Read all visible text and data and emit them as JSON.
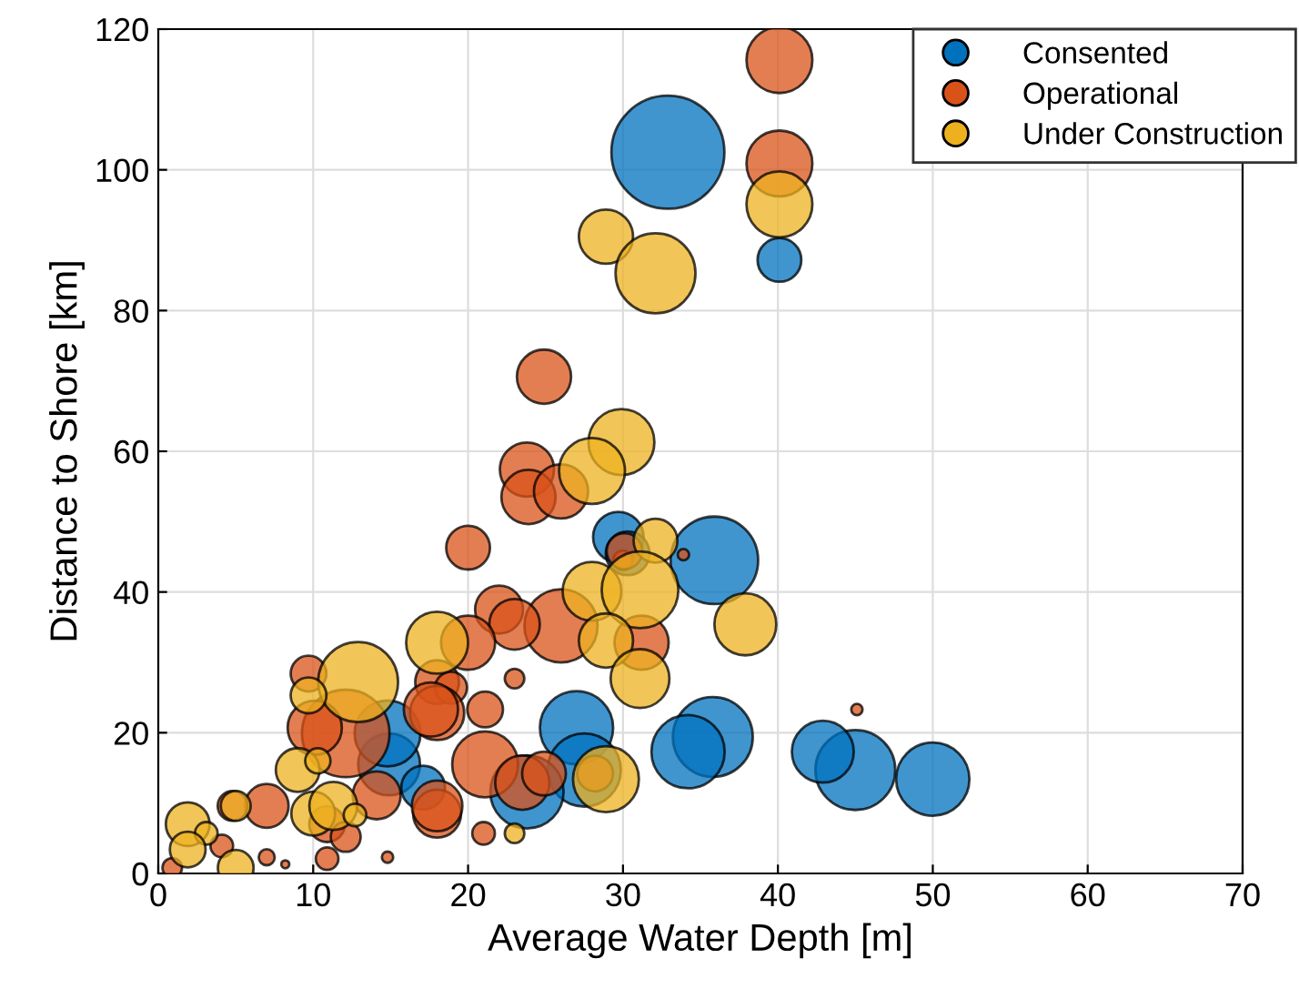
{
  "chart_data": {
    "type": "bubble",
    "xlabel": "Average Water Depth [m]",
    "ylabel": "Distance to Shore [km]",
    "xlim": [
      0,
      70
    ],
    "ylim": [
      0,
      120
    ],
    "xticks": [
      0,
      10,
      20,
      30,
      40,
      50,
      60,
      70
    ],
    "yticks": [
      0,
      20,
      40,
      60,
      80,
      100,
      120
    ],
    "grid": true,
    "legend": "top right",
    "marker": "circle",
    "series": [
      {
        "name": "Consented",
        "color": "#0072bd",
        "x": [
          32.9,
          40.1,
          35.9,
          50,
          45,
          42.9,
          35.8,
          34.2,
          27,
          27.5,
          14.9,
          14.8,
          17.1,
          23.8,
          29.7,
          30.3
        ],
        "values": [
          102.5,
          87.2,
          44.5,
          13.4,
          14.7,
          17.3,
          19.4,
          17.3,
          20.7,
          14.7,
          15.5,
          19.9,
          12.2,
          11.6,
          47.8,
          45.5
        ],
        "sizes": [
          1,
          0.15,
          0.6,
          0.42,
          0.5,
          0.3,
          0.5,
          0.42,
          0.42,
          0.42,
          0.3,
          0.34,
          0.15,
          0.42,
          0.2,
          0.15
        ]
      },
      {
        "name": "Operational",
        "color": "#d95319",
        "x": [
          40.1,
          40.1,
          24.9,
          23.8,
          23.9,
          26,
          20,
          30,
          33.9,
          30.1,
          26,
          22,
          23,
          20,
          31.2,
          23,
          18,
          18.9,
          18,
          21.1,
          21.1,
          23.5,
          24.9,
          18,
          21,
          28.2,
          9.7,
          12.1,
          10.1,
          17.6,
          14.1,
          18,
          7,
          4.8,
          10.9,
          12.1,
          10.9,
          7,
          14.8,
          4.1,
          0.9,
          8.2,
          45.1
        ],
        "values": [
          115.6,
          100.9,
          70.6,
          57.4,
          53.5,
          54.3,
          46.3,
          44.5,
          45.3,
          45.8,
          35.2,
          37.5,
          35.4,
          32.8,
          32.8,
          27.7,
          27.2,
          26.4,
          22.8,
          23.3,
          15.5,
          12.9,
          14.2,
          8.5,
          5.7,
          14.2,
          28.4,
          19.9,
          20.7,
          23.3,
          11.1,
          9.6,
          9.6,
          9.6,
          7,
          5.2,
          2.1,
          2.3,
          2.3,
          3.9,
          0.8,
          1.3,
          23.3
        ],
        "sizes": [
          0.34,
          0.34,
          0.23,
          0.23,
          0.23,
          0.23,
          0.15,
          0.03,
          0.01,
          0.1,
          0.42,
          0.18,
          0.2,
          0.23,
          0.23,
          0.03,
          0.15,
          0.08,
          0.23,
          0.1,
          0.34,
          0.23,
          0.15,
          0.18,
          0.04,
          0.1,
          0.1,
          0.6,
          0.23,
          0.23,
          0.18,
          0.2,
          0.15,
          0.07,
          0.1,
          0.07,
          0.04,
          0.02,
          0.01,
          0.04,
          0.03,
          0.005,
          0.01
        ]
      },
      {
        "name": "Under Construction",
        "color": "#edb120",
        "x": [
          40.1,
          28.9,
          32.1,
          29.9,
          28,
          32.1,
          28,
          31.1,
          28.9,
          31.1,
          37.9,
          18,
          28.9,
          23,
          12.9,
          9.7,
          9,
          10.3,
          10,
          11.3,
          12.7,
          5,
          1.9,
          3.1,
          1.9,
          5
        ],
        "values": [
          95.1,
          90.5,
          85.3,
          61.3,
          57.2,
          47.3,
          40.1,
          40.3,
          33.1,
          27.7,
          35.4,
          32.8,
          13.4,
          5.7,
          27.2,
          25.3,
          14.7,
          16,
          8.5,
          9.6,
          8.3,
          9.6,
          7,
          5.7,
          3.4,
          0.8
        ],
        "sizes": [
          0.34,
          0.23,
          0.5,
          0.34,
          0.34,
          0.15,
          0.27,
          0.46,
          0.23,
          0.27,
          0.3,
          0.3,
          0.34,
          0.03,
          0.5,
          0.1,
          0.15,
          0.05,
          0.15,
          0.18,
          0.04,
          0.07,
          0.15,
          0.04,
          0.1,
          0.1
        ]
      }
    ]
  }
}
